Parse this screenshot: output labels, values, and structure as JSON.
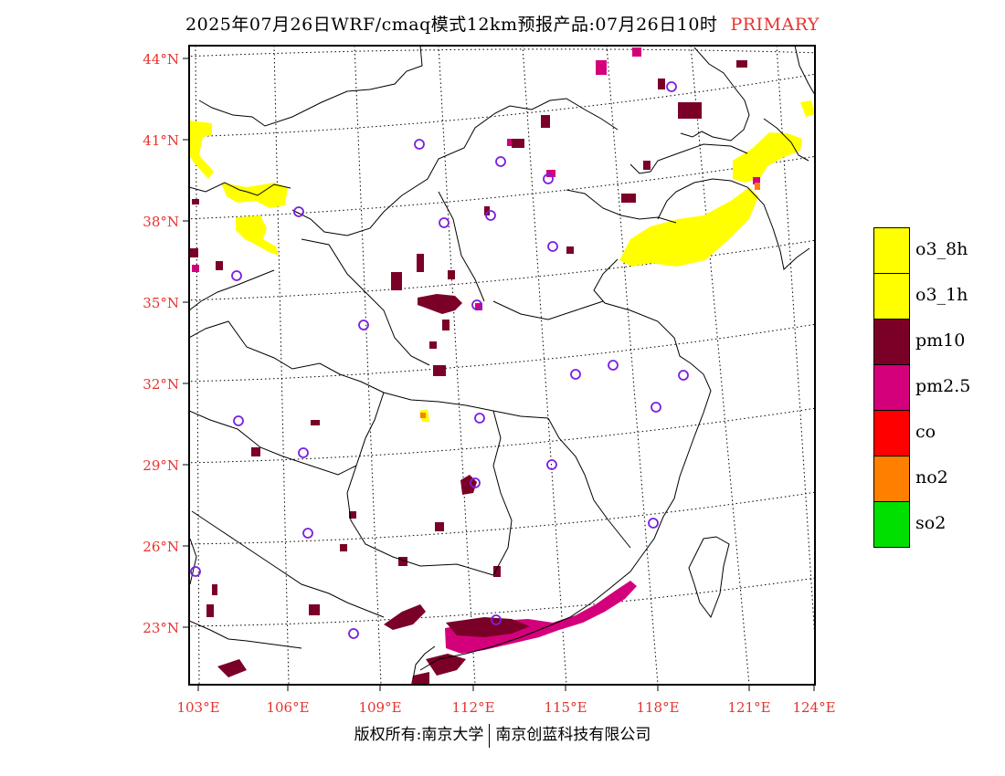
{
  "title": {
    "text": "2025年07月26日WRF/cmaq模式12km预报产品:07月26日10时",
    "tag": "PRIMARY"
  },
  "map": {
    "lat_labels": [
      "44°N",
      "41°N",
      "38°N",
      "35°N",
      "32°N",
      "29°N",
      "26°N",
      "23°N"
    ],
    "lon_labels": [
      "103°E",
      "106°E",
      "109°E",
      "112°E",
      "115°E",
      "118°E",
      "121°E",
      "124°E"
    ],
    "colors": {
      "border": "#000000",
      "grid": "#000000",
      "station": "#7a1fe0",
      "label": "#e8322f"
    }
  },
  "legend": {
    "items": [
      {
        "label": "o3_8h",
        "color": "#ffff00"
      },
      {
        "label": "o3_1h",
        "color": "#ffff00"
      },
      {
        "label": "pm10",
        "color": "#7b0027"
      },
      {
        "label": "pm2.5",
        "color": "#d4007b"
      },
      {
        "label": "co",
        "color": "#ff0000"
      },
      {
        "label": "no2",
        "color": "#ff7f00"
      },
      {
        "label": "so2",
        "color": "#00e000"
      }
    ]
  },
  "footer": {
    "left": "版权所有:南京大学",
    "right": "南京创蓝科技有限公司"
  }
}
